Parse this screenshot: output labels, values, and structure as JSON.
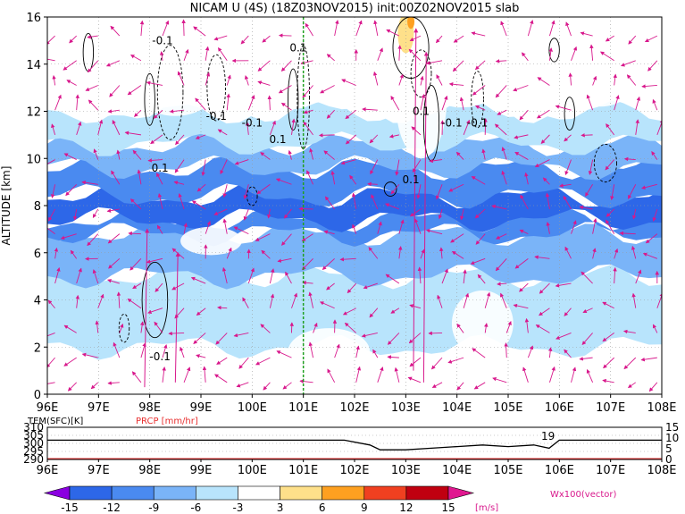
{
  "chart_data": [
    {
      "type": "heatmap",
      "title": "NICAM U (4S) (18Z03NOV2015) init:00Z02NOV2015 slab",
      "xlabel": "",
      "ylabel": "ALTITUDE [km]",
      "x_ticks": [
        "96E",
        "97E",
        "98E",
        "99E",
        "100E",
        "101E",
        "102E",
        "103E",
        "104E",
        "105E",
        "106E",
        "107E",
        "108E"
      ],
      "xlim": [
        96,
        108
      ],
      "ylim": [
        0,
        16
      ],
      "y_ticks": [
        0,
        2,
        4,
        6,
        8,
        10,
        12,
        14,
        16
      ],
      "grid": "dotted",
      "marker_line_lon": 101.0,
      "contour_labels": [
        "-0.1",
        "0.1",
        "-0.1",
        "-0.1",
        "0.1",
        "0.1",
        "0.1",
        "-0.1",
        "-0.1",
        "0.1",
        "-0.1"
      ],
      "description_bands": [
        {
          "z0": 0,
          "z1": 2,
          "u": -1
        },
        {
          "z0": 2,
          "z1": 5,
          "u": -4
        },
        {
          "z0": 5,
          "z1": 6.8,
          "u": -7
        },
        {
          "z0": 6.8,
          "z1": 7.4,
          "u": -10
        },
        {
          "z0": 7.4,
          "z1": 8.4,
          "u": -14
        },
        {
          "z0": 8.4,
          "z1": 9.6,
          "u": -11
        },
        {
          "z0": 9.6,
          "z1": 10.6,
          "u": -7
        },
        {
          "z0": 10.6,
          "z1": 12,
          "u": -4
        },
        {
          "z0": 12,
          "z1": 16,
          "u": -2
        }
      ]
    },
    {
      "type": "line",
      "title": "",
      "series": [
        {
          "name": "TEM(SFC)[K]",
          "x": [
            96,
            97,
            98,
            99,
            100,
            101,
            101.8,
            102.3,
            102.5,
            103,
            103.5,
            104,
            104.5,
            105,
            105.5,
            105.8,
            106,
            106.2,
            107,
            108
          ],
          "y": [
            302,
            302,
            302,
            302,
            302,
            302,
            302,
            299,
            296,
            296,
            297,
            298,
            299,
            298,
            299,
            297,
            302,
            302,
            302,
            302
          ]
        },
        {
          "name": "PRCP [mm/hr]",
          "x": [
            96,
            108
          ],
          "y": [
            0,
            0
          ]
        }
      ],
      "x_ticks": [
        "96E",
        "97E",
        "98E",
        "99E",
        "100E",
        "101E",
        "102E",
        "103E",
        "104E",
        "105E",
        "106E",
        "107E",
        "108E"
      ],
      "y_left_ticks": [
        "290",
        "295",
        "300",
        "305",
        "310"
      ],
      "y_right_ticks": [
        "0",
        "5",
        "10",
        "15"
      ],
      "annotation": "19"
    }
  ],
  "colorbar": {
    "ticks": [
      "-15",
      "-12",
      "-9",
      "-6",
      "-3",
      "3",
      "6",
      "9",
      "12",
      "15"
    ],
    "unit": "[m/s]",
    "colors": [
      "#8a00e0",
      "#2d67e8",
      "#4a8af0",
      "#7ab4f8",
      "#b8e4fc",
      "#ffffff",
      "#fee08a",
      "#fea020",
      "#f04020",
      "#c00010",
      "#e01890"
    ]
  },
  "vector_label": "Wx100(vector)",
  "colors": {
    "accent": "#d8188c",
    "grid": "#9a9a9a",
    "marker": "#20a020",
    "prcp": "#e83030"
  }
}
